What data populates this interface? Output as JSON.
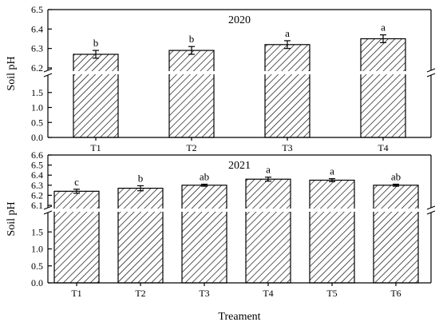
{
  "chart_data": [
    {
      "type": "bar",
      "title": "2020",
      "xlabel": "",
      "ylabel": "Soil pH",
      "categories": [
        "T1",
        "T2",
        "T3",
        "T4"
      ],
      "series": [
        {
          "values": [
            6.27,
            6.29,
            6.32,
            6.35
          ],
          "error": [
            0.02,
            0.02,
            0.02,
            0.02
          ],
          "labels": [
            "b",
            "b",
            "a",
            "a"
          ]
        }
      ],
      "broken_axis": true,
      "ylim_lower": [
        0.0,
        2.0
      ],
      "ylim_upper": [
        6.2,
        6.5
      ],
      "yticks": [
        "0.0",
        "0.5",
        "1.0",
        "1.5",
        "6.2",
        "6.3",
        "6.4",
        "6.5"
      ],
      "grid": false,
      "pattern": "diagonal-hatch"
    },
    {
      "type": "bar",
      "title": "2021",
      "xlabel": "Treament",
      "ylabel": "Soil pH",
      "categories": [
        "T1",
        "T2",
        "T3",
        "T4",
        "T5",
        "T6"
      ],
      "series": [
        {
          "values": [
            6.24,
            6.27,
            6.3,
            6.36,
            6.35,
            6.3
          ],
          "error": [
            0.02,
            0.025,
            0.01,
            0.02,
            0.015,
            0.01
          ],
          "labels": [
            "c",
            "b",
            "ab",
            "a",
            "a",
            "ab"
          ]
        }
      ],
      "broken_axis": true,
      "ylim_lower": [
        0.0,
        2.0
      ],
      "ylim_upper": [
        6.1,
        6.6
      ],
      "yticks": [
        "0.0",
        "0.5",
        "1.0",
        "1.5",
        "6.1",
        "6.2",
        "6.3",
        "6.4",
        "6.5",
        "6.6"
      ],
      "grid": false,
      "pattern": "diagonal-hatch"
    }
  ]
}
